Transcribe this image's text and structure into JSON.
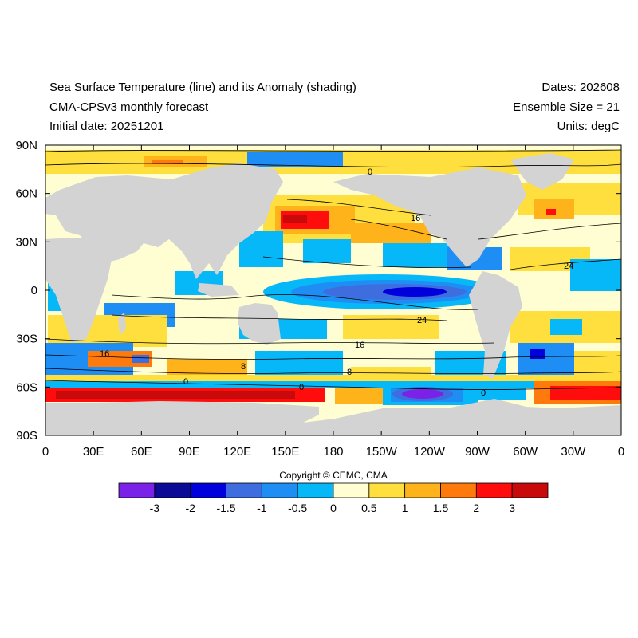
{
  "header": {
    "title_line1": "Sea Surface Temperature (line) and its Anomaly (shading)",
    "title_line2": "CMA-CPSv3 monthly forecast",
    "title_line3": "Initial date: 20251201",
    "dates": "Dates: 202608",
    "ensemble": "Ensemble Size = 21",
    "units": "Units: degC"
  },
  "map": {
    "lat_ticks": [
      "90N",
      "60N",
      "30N",
      "0",
      "30S",
      "60S",
      "90S"
    ],
    "lon_ticks": [
      "0",
      "30E",
      "60E",
      "90E",
      "120E",
      "150E",
      "180",
      "150W",
      "120W",
      "90W",
      "60W",
      "30W",
      "0"
    ],
    "contour_labels": [
      "0",
      "16",
      "24",
      "24",
      "16",
      "16",
      "8",
      "8",
      "0",
      "0",
      "0"
    ],
    "land_color": "#d3d3d3"
  },
  "copyright": "Copyright © CEMC, CMA",
  "colorbar": {
    "colors": [
      "#7b22e8",
      "#0b0b96",
      "#0000dc",
      "#3d6ddf",
      "#1e8ef5",
      "#07b8f9",
      "#fffed2",
      "#ffdf3e",
      "#ffb31a",
      "#ff7a0c",
      "#ff0d0d",
      "#c80a0a"
    ],
    "labels": [
      "-3",
      "-2",
      "-1.5",
      "-1",
      "-0.5",
      "0",
      "0.5",
      "1",
      "1.5",
      "2",
      "3"
    ]
  }
}
